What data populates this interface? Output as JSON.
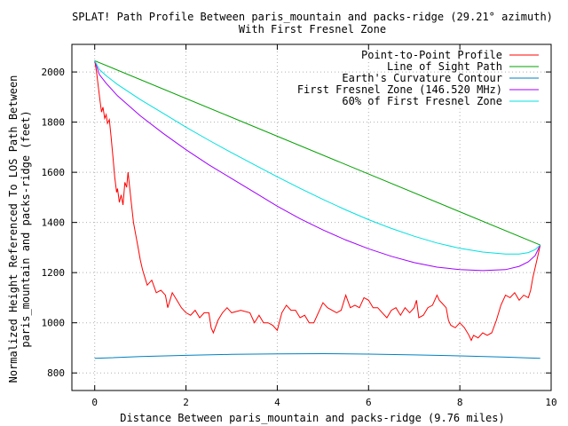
{
  "chart_data": {
    "type": "line",
    "title": "SPLAT! Path Profile Between paris_mountain and packs-ridge (29.21° azimuth)",
    "subtitle": "With First Fresnel Zone",
    "xlabel": "Distance Between paris_mountain and packs-ridge (9.76 miles)",
    "ylabel_line1": "Normalized Height Referenced To LOS Path Between",
    "ylabel_line2": "paris_mountain and packs-ridge (feet)",
    "xlim": [
      -0.5,
      10
    ],
    "ylim": [
      730,
      2110
    ],
    "x_ticks": [
      0,
      2,
      4,
      6,
      8,
      10
    ],
    "y_ticks": [
      800,
      1000,
      1200,
      1400,
      1600,
      1800,
      2000
    ],
    "grid": true,
    "legend_position": "top-right",
    "series": [
      {
        "name": "Point-to-Point Profile",
        "color": "#ff0000",
        "points": [
          [
            0.0,
            2045
          ],
          [
            0.04,
            2000
          ],
          [
            0.08,
            1940
          ],
          [
            0.12,
            1880
          ],
          [
            0.15,
            1840
          ],
          [
            0.18,
            1860
          ],
          [
            0.22,
            1815
          ],
          [
            0.25,
            1830
          ],
          [
            0.28,
            1795
          ],
          [
            0.32,
            1810
          ],
          [
            0.36,
            1740
          ],
          [
            0.4,
            1660
          ],
          [
            0.44,
            1580
          ],
          [
            0.48,
            1520
          ],
          [
            0.5,
            1535
          ],
          [
            0.54,
            1480
          ],
          [
            0.58,
            1510
          ],
          [
            0.62,
            1470
          ],
          [
            0.66,
            1560
          ],
          [
            0.7,
            1540
          ],
          [
            0.73,
            1600
          ],
          [
            0.76,
            1550
          ],
          [
            0.8,
            1480
          ],
          [
            0.85,
            1400
          ],
          [
            0.9,
            1350
          ],
          [
            0.95,
            1300
          ],
          [
            1.0,
            1250
          ],
          [
            1.05,
            1210
          ],
          [
            1.1,
            1180
          ],
          [
            1.15,
            1150
          ],
          [
            1.25,
            1170
          ],
          [
            1.35,
            1120
          ],
          [
            1.45,
            1130
          ],
          [
            1.55,
            1110
          ],
          [
            1.6,
            1060
          ],
          [
            1.7,
            1120
          ],
          [
            1.8,
            1090
          ],
          [
            1.9,
            1060
          ],
          [
            2.0,
            1040
          ],
          [
            2.1,
            1030
          ],
          [
            2.2,
            1050
          ],
          [
            2.3,
            1020
          ],
          [
            2.4,
            1040
          ],
          [
            2.5,
            1040
          ],
          [
            2.55,
            980
          ],
          [
            2.6,
            960
          ],
          [
            2.7,
            1010
          ],
          [
            2.8,
            1040
          ],
          [
            2.9,
            1060
          ],
          [
            3.0,
            1040
          ],
          [
            3.2,
            1050
          ],
          [
            3.4,
            1040
          ],
          [
            3.5,
            1000
          ],
          [
            3.6,
            1030
          ],
          [
            3.7,
            1000
          ],
          [
            3.8,
            1000
          ],
          [
            3.9,
            990
          ],
          [
            4.0,
            970
          ],
          [
            4.1,
            1040
          ],
          [
            4.2,
            1070
          ],
          [
            4.3,
            1050
          ],
          [
            4.4,
            1050
          ],
          [
            4.5,
            1020
          ],
          [
            4.6,
            1030
          ],
          [
            4.7,
            1000
          ],
          [
            4.8,
            1000
          ],
          [
            4.9,
            1040
          ],
          [
            5.0,
            1080
          ],
          [
            5.1,
            1060
          ],
          [
            5.3,
            1040
          ],
          [
            5.4,
            1050
          ],
          [
            5.5,
            1110
          ],
          [
            5.6,
            1060
          ],
          [
            5.7,
            1070
          ],
          [
            5.8,
            1060
          ],
          [
            5.9,
            1100
          ],
          [
            6.0,
            1090
          ],
          [
            6.1,
            1060
          ],
          [
            6.2,
            1060
          ],
          [
            6.3,
            1040
          ],
          [
            6.4,
            1020
          ],
          [
            6.5,
            1050
          ],
          [
            6.6,
            1060
          ],
          [
            6.7,
            1030
          ],
          [
            6.8,
            1060
          ],
          [
            6.9,
            1040
          ],
          [
            7.0,
            1060
          ],
          [
            7.05,
            1090
          ],
          [
            7.1,
            1020
          ],
          [
            7.2,
            1030
          ],
          [
            7.3,
            1060
          ],
          [
            7.4,
            1070
          ],
          [
            7.5,
            1110
          ],
          [
            7.55,
            1090
          ],
          [
            7.6,
            1080
          ],
          [
            7.7,
            1060
          ],
          [
            7.75,
            1010
          ],
          [
            7.8,
            990
          ],
          [
            7.9,
            980
          ],
          [
            8.0,
            1000
          ],
          [
            8.1,
            980
          ],
          [
            8.2,
            950
          ],
          [
            8.25,
            930
          ],
          [
            8.3,
            950
          ],
          [
            8.4,
            940
          ],
          [
            8.5,
            960
          ],
          [
            8.6,
            950
          ],
          [
            8.7,
            960
          ],
          [
            8.8,
            1010
          ],
          [
            8.9,
            1070
          ],
          [
            9.0,
            1110
          ],
          [
            9.1,
            1100
          ],
          [
            9.2,
            1120
          ],
          [
            9.3,
            1090
          ],
          [
            9.4,
            1110
          ],
          [
            9.5,
            1100
          ],
          [
            9.55,
            1130
          ],
          [
            9.6,
            1180
          ],
          [
            9.65,
            1220
          ],
          [
            9.7,
            1260
          ],
          [
            9.76,
            1310
          ]
        ]
      },
      {
        "name": "Line of Sight Path",
        "color": "#00a000",
        "points": [
          [
            0.0,
            2045
          ],
          [
            9.76,
            1310
          ]
        ]
      },
      {
        "name": "Earth's Curvature Contour",
        "color": "#0080c0",
        "points": [
          [
            0.0,
            858
          ],
          [
            1.0,
            865
          ],
          [
            2.0,
            870
          ],
          [
            3.0,
            874
          ],
          [
            4.0,
            876
          ],
          [
            5.0,
            877
          ],
          [
            6.0,
            875
          ],
          [
            7.0,
            872
          ],
          [
            8.0,
            868
          ],
          [
            9.0,
            863
          ],
          [
            9.76,
            858
          ]
        ]
      },
      {
        "name": "First Fresnel Zone (146.520 MHz)",
        "color": "#a000ff",
        "points": [
          [
            0.0,
            2045
          ],
          [
            0.1,
            1990
          ],
          [
            0.25,
            1955
          ],
          [
            0.5,
            1905
          ],
          [
            1.0,
            1825
          ],
          [
            1.5,
            1755
          ],
          [
            2.0,
            1690
          ],
          [
            2.5,
            1630
          ],
          [
            3.0,
            1575
          ],
          [
            3.5,
            1520
          ],
          [
            4.0,
            1465
          ],
          [
            4.5,
            1415
          ],
          [
            5.0,
            1370
          ],
          [
            5.5,
            1330
          ],
          [
            6.0,
            1295
          ],
          [
            6.5,
            1265
          ],
          [
            7.0,
            1240
          ],
          [
            7.5,
            1222
          ],
          [
            8.0,
            1212
          ],
          [
            8.5,
            1208
          ],
          [
            9.0,
            1212
          ],
          [
            9.3,
            1225
          ],
          [
            9.5,
            1243
          ],
          [
            9.65,
            1268
          ],
          [
            9.76,
            1310
          ]
        ]
      },
      {
        "name": "60% of First Fresnel Zone",
        "color": "#00e0e0",
        "points": [
          [
            0.0,
            2045
          ],
          [
            0.1,
            2010
          ],
          [
            0.25,
            1985
          ],
          [
            0.5,
            1950
          ],
          [
            1.0,
            1890
          ],
          [
            1.5,
            1835
          ],
          [
            2.0,
            1780
          ],
          [
            2.5,
            1728
          ],
          [
            3.0,
            1678
          ],
          [
            3.5,
            1630
          ],
          [
            4.0,
            1582
          ],
          [
            4.5,
            1536
          ],
          [
            5.0,
            1492
          ],
          [
            5.5,
            1450
          ],
          [
            6.0,
            1411
          ],
          [
            6.5,
            1376
          ],
          [
            7.0,
            1345
          ],
          [
            7.5,
            1318
          ],
          [
            8.0,
            1297
          ],
          [
            8.5,
            1282
          ],
          [
            9.0,
            1274
          ],
          [
            9.3,
            1274
          ],
          [
            9.5,
            1280
          ],
          [
            9.65,
            1292
          ],
          [
            9.76,
            1310
          ]
        ]
      }
    ]
  }
}
